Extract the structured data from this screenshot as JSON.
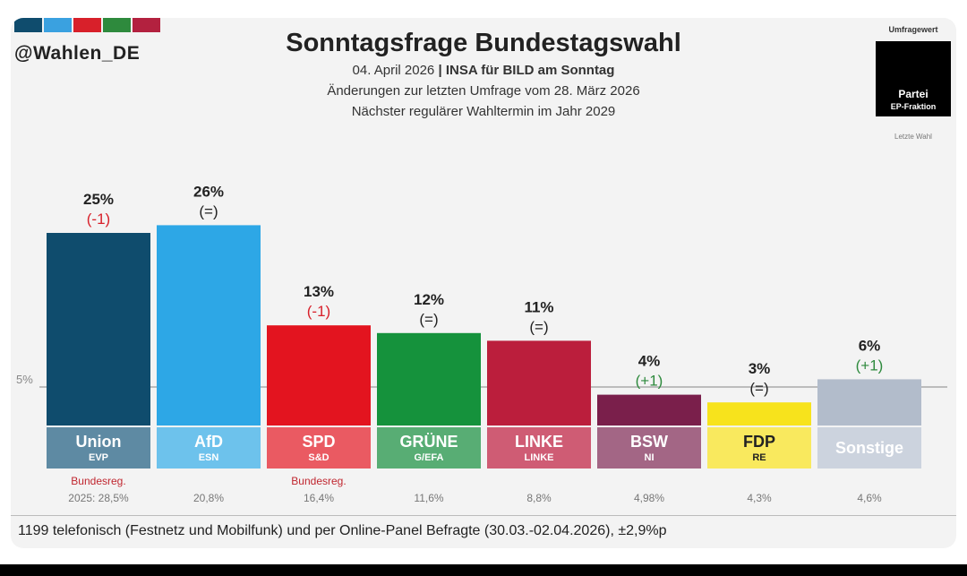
{
  "header": {
    "handle": "@Wahlen_DE",
    "title": "Sonntagsfrage Bundestagswahl",
    "subtitle_date": "04. April 2026",
    "subtitle_sep": " | ",
    "subtitle_institute": "INSA für BILD am Sonntag",
    "subtitle_changes": "Änderungen zur letzten Umfrage vom 28. März 2026",
    "subtitle_next": "Nächster regulärer Wahltermin im Jahr 2029",
    "brand_stripe_colors": [
      "#0f4c6d",
      "#3aa1e0",
      "#d8202a",
      "#2e8a3d",
      "#b3213f"
    ]
  },
  "legend": {
    "title": "Umfragewert",
    "party": "Partei",
    "fraction": "EP-Fraktion",
    "last_election": "Letzte Wahl"
  },
  "chart_data": {
    "type": "bar",
    "ylim": [
      0,
      26
    ],
    "threshold_label": "5%",
    "threshold_value": 5,
    "categories": [
      "Union",
      "AfD",
      "SPD",
      "GRÜNE",
      "LINKE",
      "BSW",
      "FDP",
      "Sonstige"
    ],
    "fractions": [
      "EVP",
      "ESN",
      "S&D",
      "G/EFA",
      "LINKE",
      "NI",
      "RE",
      ""
    ],
    "values": [
      25,
      26,
      13,
      12,
      11,
      4,
      3,
      6
    ],
    "value_labels": [
      "25%",
      "26%",
      "13%",
      "12%",
      "11%",
      "4%",
      "3%",
      "6%"
    ],
    "changes": [
      "(-1)",
      "(=)",
      "(-1)",
      "(=)",
      "(=)",
      "(+1)",
      "(=)",
      "(+1)"
    ],
    "change_colors": [
      "#d8202a",
      "#222222",
      "#d8202a",
      "#222222",
      "#222222",
      "#2e8a3d",
      "#222222",
      "#2e8a3d"
    ],
    "bar_colors": [
      "#0f4c6d",
      "#2da7e6",
      "#e3141f",
      "#15923c",
      "#bb1e3c",
      "#7a1f4b",
      "#f7e31c",
      "#b2bccb"
    ],
    "label_colors": [
      "#5e8aa3",
      "#6dc2ec",
      "#ea5a62",
      "#58ad74",
      "#cf5c74",
      "#a36685",
      "#f9e95e",
      "#ccd3de"
    ],
    "label_text_colors": [
      "#ffffff",
      "#ffffff",
      "#ffffff",
      "#ffffff",
      "#ffffff",
      "#ffffff",
      "#222222",
      "#ffffff"
    ],
    "gov_labels": [
      "Bundesreg.",
      "",
      "Bundesreg.",
      "",
      "",
      "",
      "",
      ""
    ],
    "last_election": [
      "2025: 28,5%",
      "20,8%",
      "16,4%",
      "11,6%",
      "8,8%",
      "4,98%",
      "4,3%",
      "4,6%"
    ]
  },
  "footnote": "1199 telefonisch (Festnetz und Mobilfunk) und per Online-Panel Befragte (30.03.-02.04.2026), ±2,9%p"
}
